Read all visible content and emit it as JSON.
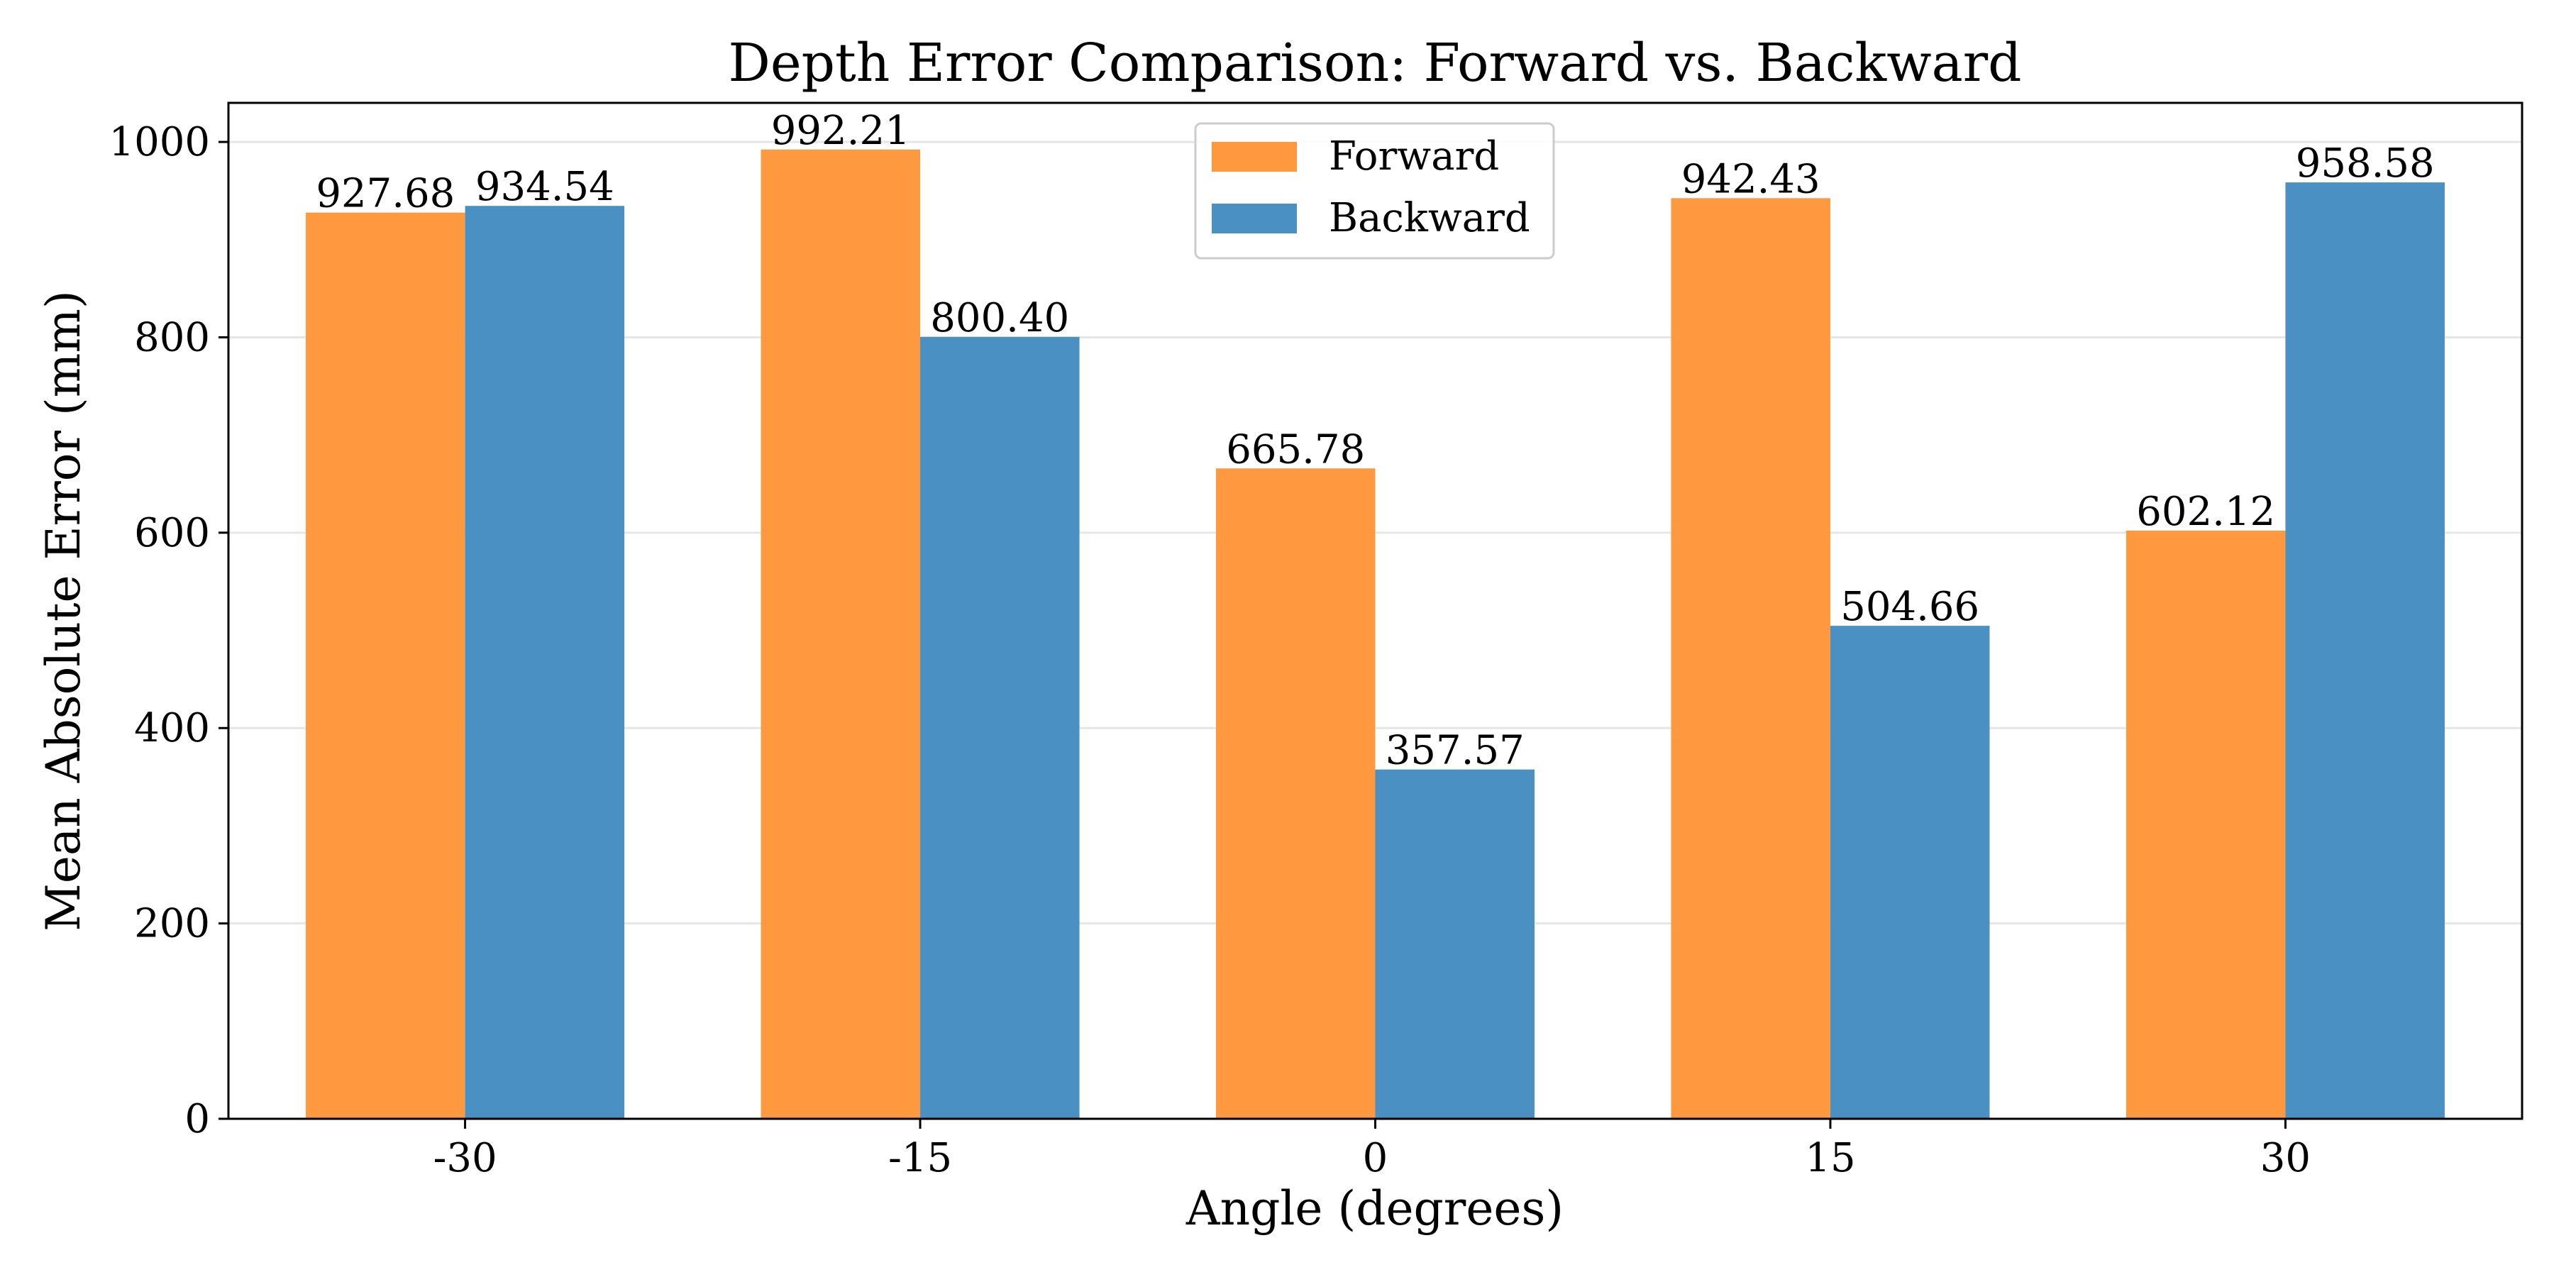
{
  "chart_data": {
    "type": "bar",
    "title": "Depth Error Comparison: Forward vs. Backward",
    "xlabel": "Angle (degrees)",
    "ylabel": "Mean Absolute Error (mm)",
    "categories": [
      "-30",
      "-15",
      "0",
      "15",
      "30"
    ],
    "series": [
      {
        "name": "Forward",
        "color": "#ff9940",
        "values": [
          927.68,
          992.21,
          665.78,
          942.43,
          602.12
        ],
        "labels": [
          "927.68",
          "992.21",
          "665.78",
          "942.43",
          "602.12"
        ]
      },
      {
        "name": "Backward",
        "color": "#4a90c2",
        "values": [
          934.54,
          800.4,
          357.57,
          504.66,
          958.58
        ],
        "labels": [
          "934.54",
          "800.40",
          "357.57",
          "504.66",
          "958.58"
        ]
      }
    ],
    "ylim": [
      0,
      1040
    ],
    "yticks": [
      0,
      200,
      400,
      600,
      800,
      1000
    ],
    "grid": "horizontal",
    "legend_position": "top-center"
  }
}
